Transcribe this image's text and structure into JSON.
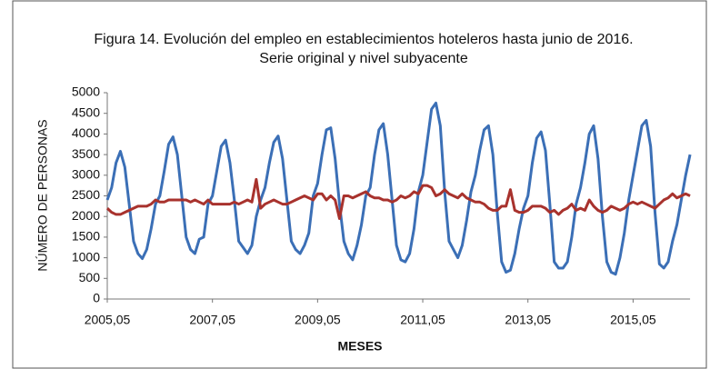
{
  "chart_data": {
    "type": "line",
    "title": "Figura 14. Evolución del empleo en establecimientos hoteleros hasta junio de 2016. Serie original y nivel subyacente",
    "xlabel": "MESES",
    "ylabel": "NÚMERO DE PERSONAS",
    "categories": [
      "2005,05",
      null,
      null,
      null,
      null,
      null,
      null,
      null,
      null,
      null,
      null,
      null,
      null,
      null,
      null,
      null,
      null,
      null,
      null,
      null,
      null,
      null,
      null,
      null,
      "2007,05",
      null,
      null,
      null,
      null,
      null,
      null,
      null,
      null,
      null,
      null,
      null,
      null,
      null,
      null,
      null,
      null,
      null,
      null,
      null,
      null,
      null,
      null,
      null,
      "2009,05",
      null,
      null,
      null,
      null,
      null,
      null,
      null,
      null,
      null,
      null,
      null,
      null,
      null,
      null,
      null,
      null,
      null,
      null,
      null,
      null,
      null,
      null,
      null,
      "2011,05",
      null,
      null,
      null,
      null,
      null,
      null,
      null,
      null,
      null,
      null,
      null,
      null,
      null,
      null,
      null,
      null,
      null,
      null,
      null,
      null,
      null,
      null,
      null,
      "2013,05",
      null,
      null,
      null,
      null,
      null,
      null,
      null,
      null,
      null,
      null,
      null,
      null,
      null,
      null,
      null,
      null,
      null,
      null,
      null,
      null,
      null,
      null,
      null,
      "2015,05",
      null,
      null,
      null,
      null,
      null,
      null,
      null,
      null,
      null,
      null,
      null,
      null,
      null
    ],
    "ylim": [
      0,
      5000
    ],
    "yticks": [
      0,
      500,
      1000,
      1500,
      2000,
      2500,
      3000,
      3500,
      4000,
      4500,
      5000
    ],
    "grid": false,
    "series": [
      {
        "color": "#3b6fb6",
        "values": [
          2400,
          2700,
          3300,
          3580,
          3200,
          2300,
          1400,
          1100,
          980,
          1200,
          1700,
          2300,
          2500,
          3100,
          3750,
          3930,
          3500,
          2500,
          1500,
          1200,
          1100,
          1450,
          1500,
          2300,
          2500,
          3100,
          3700,
          3850,
          3300,
          2400,
          1400,
          1250,
          1100,
          1300,
          2000,
          2400,
          2700,
          3300,
          3800,
          3950,
          3400,
          2400,
          1400,
          1200,
          1100,
          1300,
          1600,
          2500,
          2800,
          3500,
          4100,
          4150,
          3400,
          2300,
          1400,
          1100,
          950,
          1300,
          1800,
          2500,
          2700,
          3500,
          4100,
          4250,
          3500,
          2400,
          1300,
          950,
          900,
          1100,
          1700,
          2600,
          3000,
          3800,
          4600,
          4750,
          4200,
          2600,
          1400,
          1200,
          1000,
          1300,
          1900,
          2600,
          3000,
          3600,
          4100,
          4200,
          3500,
          2100,
          900,
          650,
          700,
          1100,
          1700,
          2200,
          2500,
          3300,
          3900,
          4050,
          3600,
          2300,
          900,
          750,
          750,
          900,
          1500,
          2300,
          2700,
          3300,
          4000,
          4200,
          3400,
          2000,
          900,
          650,
          600,
          1000,
          1600,
          2400,
          3000,
          3600,
          4200,
          4330,
          3700,
          2100,
          850,
          750,
          900,
          1400,
          1800,
          2400,
          3000,
          3500
        ]
      },
      {
        "color": "#a8322d",
        "values": [
          2200,
          2100,
          2050,
          2050,
          2100,
          2150,
          2200,
          2250,
          2250,
          2250,
          2300,
          2400,
          2350,
          2350,
          2400,
          2400,
          2400,
          2400,
          2400,
          2350,
          2400,
          2350,
          2300,
          2400,
          2300,
          2300,
          2300,
          2300,
          2300,
          2350,
          2300,
          2350,
          2400,
          2350,
          2900,
          2200,
          2300,
          2350,
          2400,
          2350,
          2300,
          2300,
          2350,
          2400,
          2450,
          2500,
          2450,
          2400,
          2550,
          2550,
          2400,
          2500,
          2400,
          1950,
          2500,
          2500,
          2450,
          2500,
          2550,
          2600,
          2500,
          2450,
          2450,
          2400,
          2400,
          2350,
          2400,
          2500,
          2450,
          2500,
          2600,
          2550,
          2750,
          2750,
          2700,
          2500,
          2550,
          2650,
          2550,
          2500,
          2450,
          2550,
          2450,
          2400,
          2350,
          2350,
          2300,
          2200,
          2150,
          2150,
          2250,
          2250,
          2650,
          2150,
          2100,
          2100,
          2150,
          2250,
          2250,
          2250,
          2200,
          2100,
          2150,
          2050,
          2150,
          2200,
          2300,
          2150,
          2200,
          2150,
          2400,
          2250,
          2150,
          2100,
          2150,
          2250,
          2200,
          2150,
          2200,
          2300,
          2350,
          2300,
          2350,
          2300,
          2250,
          2200,
          2300,
          2400,
          2450,
          2550,
          2450,
          2500,
          2550,
          2500
        ]
      }
    ]
  }
}
